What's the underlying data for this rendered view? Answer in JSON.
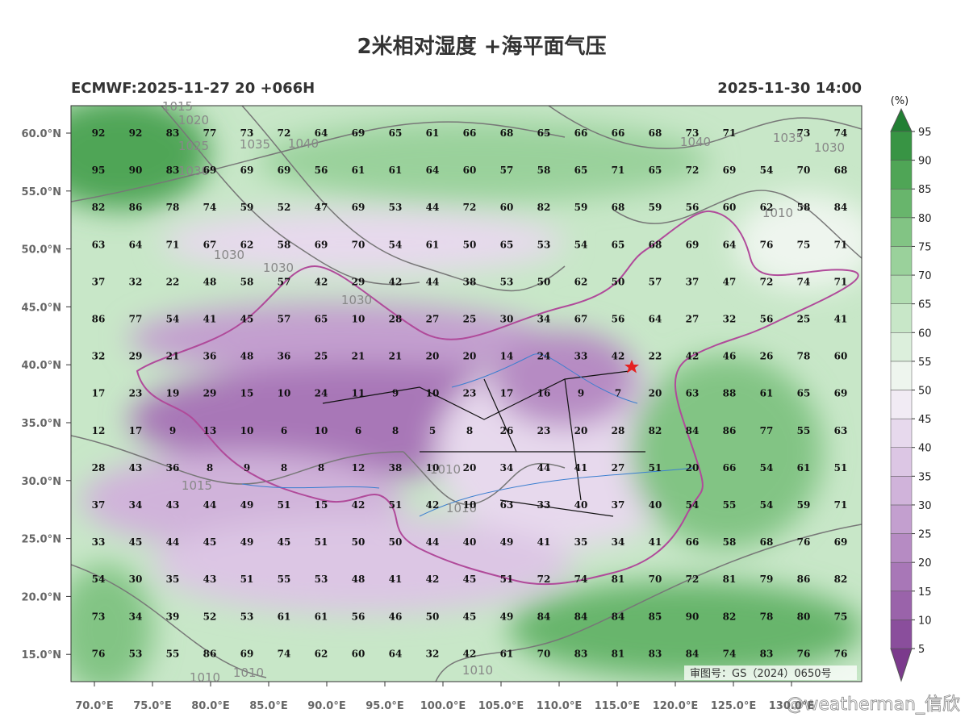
{
  "title": "2米相对湿度 +海平面气压",
  "model_run": "ECMWF:2025-11-27 20 +066H",
  "valid_time": "2025-11-30 14:00",
  "lat_ticks": [
    {
      "value": 60,
      "label": "60.0°N"
    },
    {
      "value": 55,
      "label": "55.0°N"
    },
    {
      "value": 50,
      "label": "50.0°N"
    },
    {
      "value": 45,
      "label": "45.0°N"
    },
    {
      "value": 40,
      "label": "40.0°N"
    },
    {
      "value": 35,
      "label": "35.0°N"
    },
    {
      "value": 30,
      "label": "30.0°N"
    },
    {
      "value": 25,
      "label": "25.0°N"
    },
    {
      "value": 20,
      "label": "20.0°N"
    },
    {
      "value": 15,
      "label": "15.0°N"
    }
  ],
  "lon_ticks": [
    {
      "value": 70,
      "label": "70.0°E"
    },
    {
      "value": 75,
      "label": "75.0°E"
    },
    {
      "value": 80,
      "label": "80.0°E"
    },
    {
      "value": 85,
      "label": "85.0°E"
    },
    {
      "value": 90,
      "label": "90.0°E"
    },
    {
      "value": 95,
      "label": "95.0°E"
    },
    {
      "value": 100,
      "label": "100.0°E"
    },
    {
      "value": 105,
      "label": "105.0°E"
    },
    {
      "value": 110,
      "label": "110.0°E"
    },
    {
      "value": 115,
      "label": "115.0°E"
    },
    {
      "value": 120,
      "label": "120.0°E"
    },
    {
      "value": 125,
      "label": "125.0°E"
    },
    {
      "value": 130,
      "label": "130.0°E"
    }
  ],
  "colorbar": {
    "unit": "(%)",
    "ticks": [
      5,
      10,
      15,
      20,
      25,
      30,
      35,
      40,
      45,
      50,
      55,
      60,
      65,
      70,
      75,
      80,
      85,
      90,
      95
    ],
    "colors": [
      "#7b3a8c",
      "#8a4e9c",
      "#9a63aa",
      "#a877b7",
      "#b68bc3",
      "#c39fcf",
      "#d0b3da",
      "#dcc6e4",
      "#e7d9ed",
      "#f1ebf4",
      "#eef5ee",
      "#dcefdc",
      "#c8e7c8",
      "#b2ddb2",
      "#9ad19b",
      "#82c484",
      "#68b56c",
      "#4fa556",
      "#389444",
      "#217f33"
    ]
  },
  "rh_values": [
    [
      92,
      92,
      83,
      77,
      73,
      72,
      64,
      69,
      65,
      61,
      66,
      68,
      65,
      66,
      66,
      68,
      73,
      71,
      null,
      73,
      74
    ],
    [
      95,
      90,
      83,
      69,
      69,
      69,
      56,
      61,
      61,
      64,
      60,
      57,
      58,
      65,
      71,
      65,
      72,
      69,
      54,
      70,
      68
    ],
    [
      82,
      86,
      78,
      74,
      59,
      52,
      47,
      69,
      53,
      44,
      72,
      60,
      82,
      59,
      68,
      59,
      56,
      60,
      62,
      58,
      84
    ],
    [
      63,
      64,
      71,
      67,
      62,
      58,
      69,
      70,
      54,
      61,
      50,
      65,
      53,
      54,
      65,
      68,
      69,
      64,
      76,
      75,
      71
    ],
    [
      37,
      32,
      22,
      48,
      58,
      57,
      42,
      29,
      42,
      44,
      38,
      53,
      50,
      62,
      50,
      57,
      37,
      47,
      72,
      74,
      71
    ],
    [
      86,
      77,
      54,
      41,
      45,
      57,
      65,
      10,
      28,
      27,
      25,
      30,
      34,
      67,
      56,
      64,
      27,
      32,
      56,
      25,
      41
    ],
    [
      32,
      29,
      21,
      36,
      48,
      36,
      25,
      21,
      21,
      20,
      20,
      14,
      24,
      33,
      42,
      22,
      42,
      46,
      26,
      78,
      60
    ],
    [
      17,
      23,
      19,
      29,
      15,
      10,
      24,
      11,
      9,
      10,
      23,
      17,
      16,
      9,
      7,
      20,
      63,
      88,
      61,
      65,
      69
    ],
    [
      12,
      17,
      9,
      13,
      10,
      6,
      10,
      6,
      8,
      5,
      8,
      26,
      23,
      20,
      28,
      82,
      84,
      86,
      77,
      55,
      63
    ],
    [
      28,
      43,
      36,
      8,
      9,
      8,
      8,
      12,
      38,
      10,
      20,
      34,
      44,
      41,
      27,
      51,
      20,
      66,
      54,
      61,
      51
    ],
    [
      37,
      34,
      43,
      44,
      49,
      51,
      15,
      42,
      51,
      42,
      10,
      63,
      33,
      40,
      37,
      40,
      54,
      55,
      54,
      59,
      71
    ],
    [
      33,
      45,
      44,
      45,
      49,
      45,
      51,
      50,
      50,
      44,
      40,
      49,
      41,
      35,
      34,
      41,
      66,
      58,
      68,
      76,
      69
    ],
    [
      54,
      30,
      35,
      43,
      51,
      55,
      53,
      48,
      41,
      42,
      45,
      51,
      72,
      74,
      81,
      70,
      72,
      81,
      79,
      86,
      82
    ],
    [
      73,
      34,
      39,
      52,
      53,
      61,
      61,
      56,
      46,
      50,
      45,
      49,
      84,
      84,
      84,
      85,
      90,
      82,
      78,
      80,
      75
    ],
    [
      76,
      53,
      55,
      86,
      69,
      74,
      62,
      60,
      64,
      32,
      42,
      61,
      70,
      83,
      81,
      83,
      84,
      74,
      83,
      76,
      76
    ]
  ],
  "isobar_labels": [
    "1015",
    "1020",
    "1025",
    "1030",
    "1035",
    "1040",
    "1030",
    "1030",
    "1030",
    "1040",
    "1035",
    "1030",
    "1010",
    "1015",
    "1010",
    "1010",
    "1010",
    "1010",
    "1010"
  ],
  "approval_number": "审图号：GS（2024）0650号",
  "watermark": "@weatherman_信欣"
}
